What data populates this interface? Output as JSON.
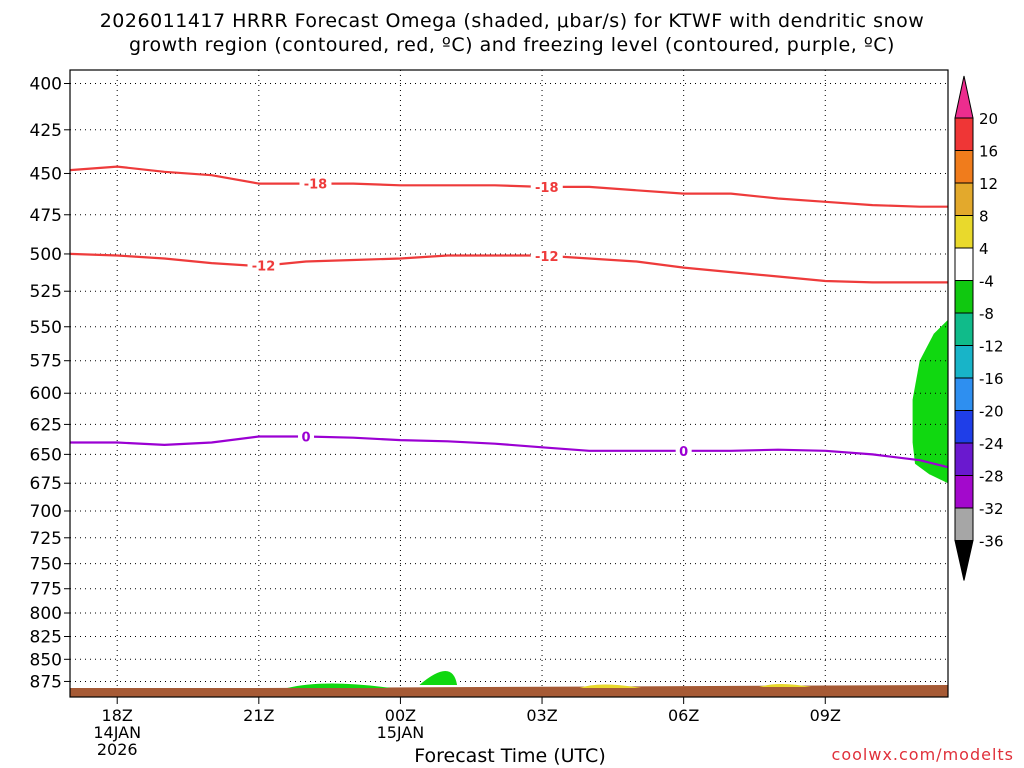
{
  "chart_data": {
    "type": "line",
    "title_line1": "2026011417 HRRR Forecast Omega (shaded, μbar/s) for KTWF with dendritic snow",
    "title_line2": "growth region (contoured, red, ºC) and freezing level (contoured, purple, ºC)",
    "xlabel": "Forecast Time (UTC)",
    "credit": "coolwx.com/modelts",
    "x_ticks": [
      {
        "hour": 18,
        "lines": [
          "18Z",
          "14JAN",
          "2026"
        ]
      },
      {
        "hour": 21,
        "lines": [
          "21Z"
        ]
      },
      {
        "hour": 24,
        "lines": [
          "00Z",
          "15JAN"
        ]
      },
      {
        "hour": 27,
        "lines": [
          "03Z"
        ]
      },
      {
        "hour": 30,
        "lines": [
          "06Z"
        ]
      },
      {
        "hour": 33,
        "lines": [
          "09Z"
        ]
      }
    ],
    "xlim": [
      17,
      35.6
    ],
    "y_scale": "log",
    "ylim": [
      393,
      893
    ],
    "y_ticks": [
      400,
      425,
      450,
      475,
      500,
      525,
      550,
      575,
      600,
      625,
      650,
      675,
      700,
      725,
      750,
      775,
      800,
      825,
      850,
      875
    ],
    "grid": true,
    "series": [
      {
        "contour_label": "-18",
        "color": "#ee3b3b",
        "x": [
          17,
          18,
          19,
          20,
          21,
          22,
          23,
          24,
          25,
          26,
          27,
          28,
          29,
          30,
          31,
          32,
          33,
          34,
          35,
          35.6
        ],
        "y": [
          448,
          446,
          449,
          451,
          456,
          456,
          456,
          457,
          457,
          457,
          458,
          458,
          460,
          462,
          462,
          465,
          467,
          469,
          470,
          470
        ],
        "label_x": [
          22.2,
          27.1
        ]
      },
      {
        "contour_label": "-12",
        "color": "#ee3b3b",
        "x": [
          17,
          18,
          19,
          20,
          21,
          22,
          23,
          24,
          25,
          26,
          27,
          28,
          29,
          30,
          31,
          32,
          33,
          34,
          35,
          35.6
        ],
        "y": [
          500,
          501,
          503,
          506,
          508,
          505,
          504,
          503,
          501,
          501,
          501,
          503,
          505,
          509,
          512,
          515,
          518,
          519,
          519,
          519
        ],
        "label_x": [
          21.1,
          27.1
        ]
      },
      {
        "contour_label": "0",
        "color": "#9b00d3",
        "x": [
          17,
          18,
          19,
          20,
          21,
          22,
          23,
          24,
          25,
          26,
          27,
          28,
          29,
          30,
          31,
          32,
          33,
          34,
          35,
          35.6
        ],
        "y": [
          640,
          640,
          642,
          640,
          635,
          635,
          636,
          638,
          639,
          641,
          644,
          647,
          647,
          647,
          647,
          646,
          647,
          650,
          655,
          661
        ],
        "label_x": [
          22.0,
          30.0
        ]
      }
    ],
    "colorbar": {
      "ticks": [
        20,
        16,
        12,
        8,
        4,
        -4,
        -8,
        -12,
        -16,
        -20,
        -24,
        -28,
        -32,
        -36
      ],
      "colors": [
        "#ed2d8e",
        "#ef3636",
        "#f07c1c",
        "#e3a92c",
        "#e9d92c",
        "#ffffff",
        "#10c810",
        "#10bb8a",
        "#18b4c8",
        "#2e8ff0",
        "#1f3ee8",
        "#6a19cf",
        "#a309cc",
        "#a6a6a6",
        "#000000"
      ]
    },
    "omega_shading": [
      {
        "value_range": [
          -8,
          -4
        ],
        "color": "#10d810",
        "note": "right edge 11Z, ~550-675 mb"
      }
    ]
  }
}
